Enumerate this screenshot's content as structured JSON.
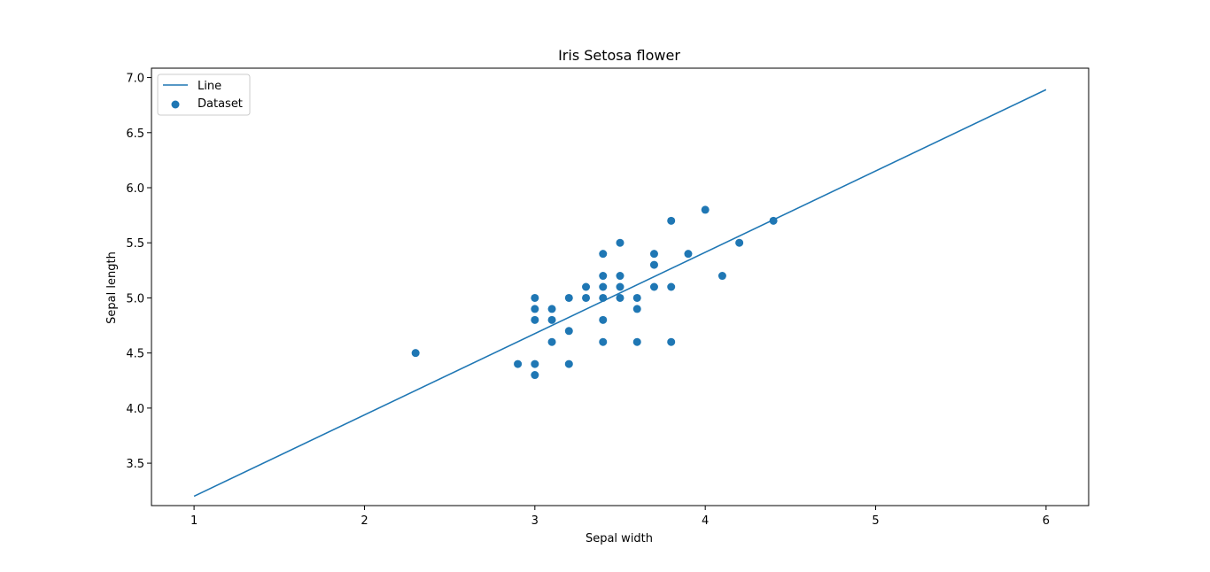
{
  "chart_data": {
    "type": "scatter",
    "title": "Iris Setosa flower",
    "xlabel": "Sepal width",
    "ylabel": "Sepal length",
    "xlim": [
      0.75,
      6.25
    ],
    "ylim": [
      3.115,
      7.085
    ],
    "xticks": [
      1,
      2,
      3,
      4,
      5,
      6
    ],
    "yticks": [
      3.5,
      4.0,
      4.5,
      5.0,
      5.5,
      6.0,
      6.5,
      7.0
    ],
    "grid": false,
    "legend_position": "upper-left",
    "series": [
      {
        "name": "Line",
        "kind": "line",
        "color": "#1f77b4",
        "x": [
          1,
          6
        ],
        "y": [
          3.2,
          6.89
        ]
      },
      {
        "name": "Dataset",
        "kind": "scatter",
        "color": "#1f77b4",
        "x": [
          2.3,
          2.9,
          3.0,
          3.0,
          3.0,
          3.0,
          3.0,
          3.1,
          3.1,
          3.1,
          3.2,
          3.2,
          3.2,
          3.3,
          3.3,
          3.4,
          3.4,
          3.4,
          3.4,
          3.4,
          3.4,
          3.5,
          3.5,
          3.5,
          3.5,
          3.6,
          3.6,
          3.6,
          3.7,
          3.7,
          3.7,
          3.8,
          3.8,
          3.8,
          3.9,
          4.0,
          4.1,
          4.2,
          4.4
        ],
        "y": [
          4.5,
          4.4,
          5.0,
          4.9,
          4.8,
          4.4,
          4.3,
          4.9,
          4.8,
          4.6,
          5.0,
          4.7,
          4.4,
          5.1,
          5.0,
          5.4,
          5.2,
          5.1,
          5.0,
          4.8,
          4.6,
          5.5,
          5.2,
          5.1,
          5.0,
          5.0,
          4.9,
          4.6,
          5.4,
          5.3,
          5.1,
          5.7,
          5.1,
          4.6,
          5.4,
          5.8,
          5.2,
          5.5,
          5.7
        ]
      }
    ]
  }
}
